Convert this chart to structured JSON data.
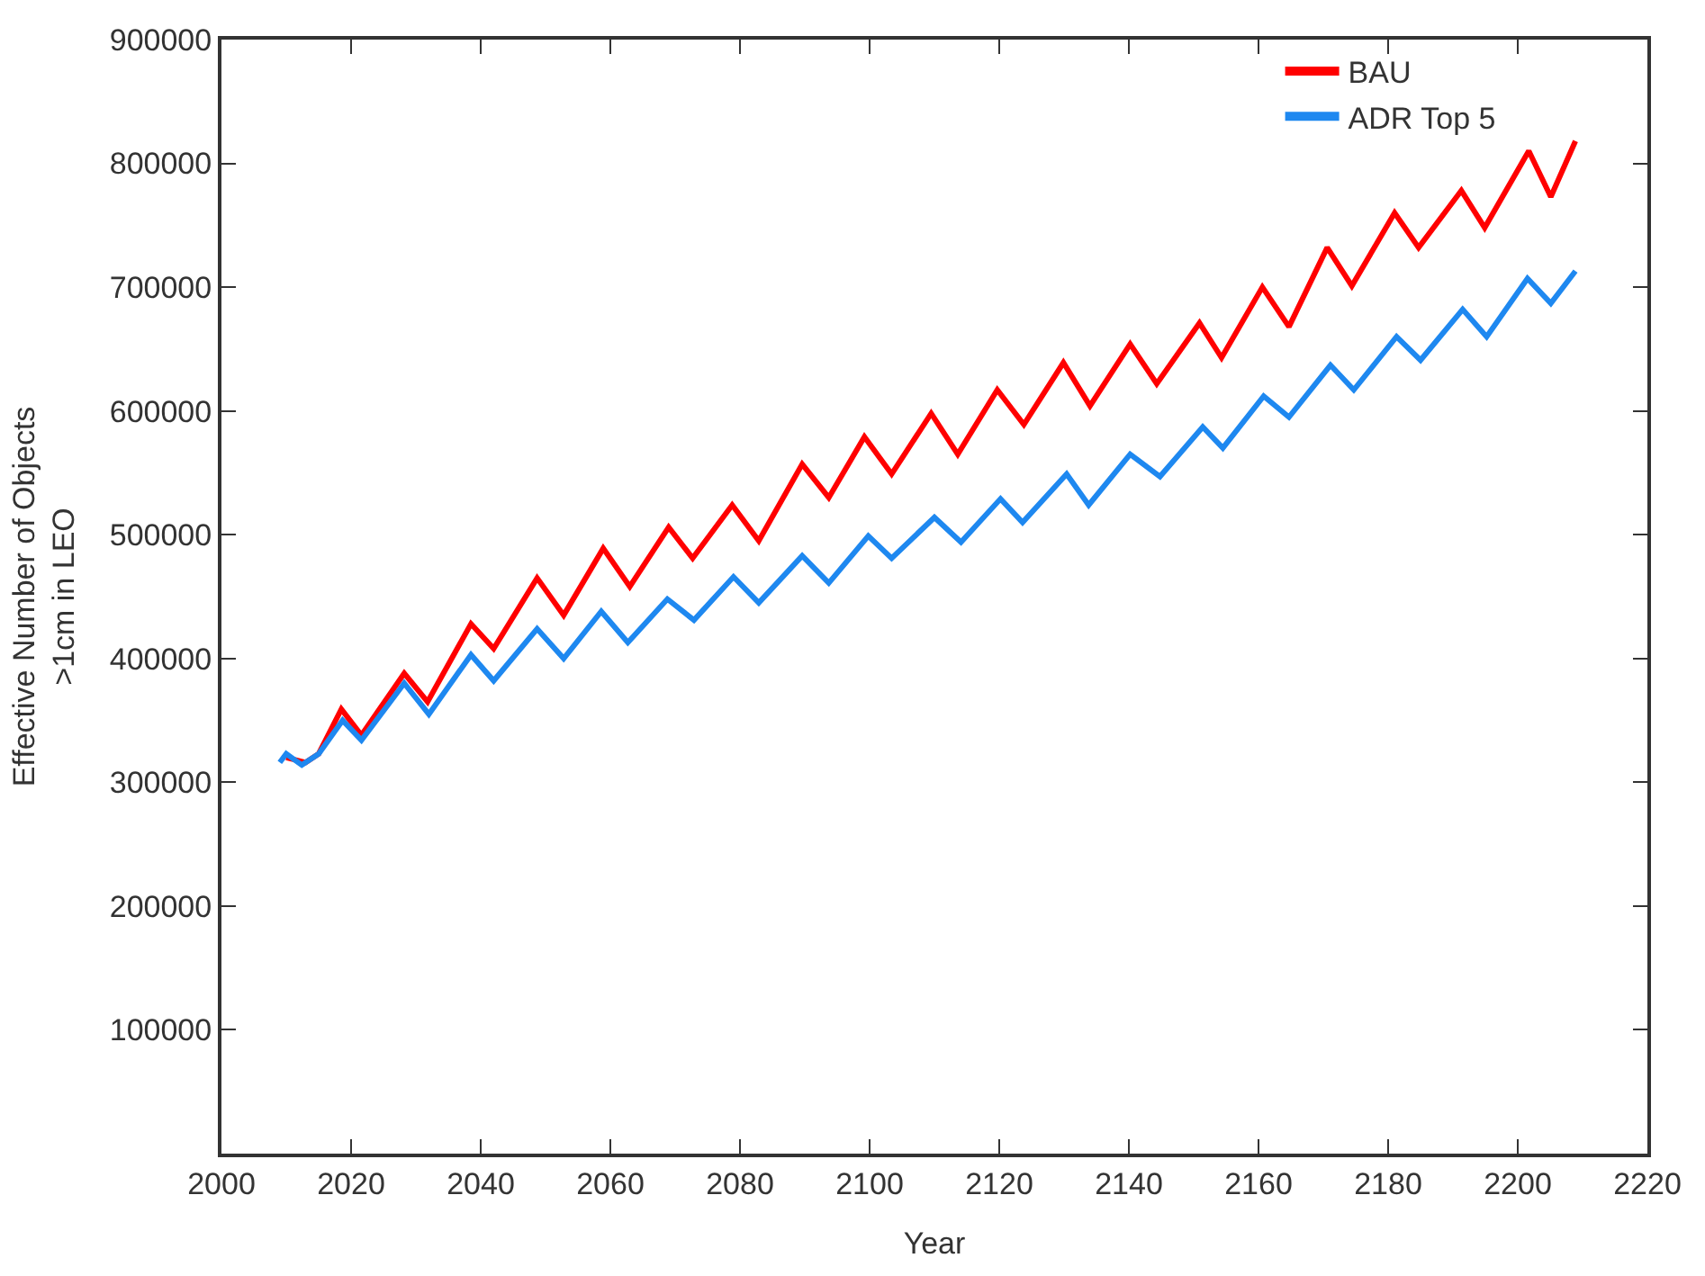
{
  "chart_data": {
    "type": "line",
    "xlabel": "Year",
    "ylabel": "Effective Number of Objects\n>1cm in LEO",
    "xlim": [
      2000,
      2220
    ],
    "xticks": [
      2000,
      2020,
      2040,
      2060,
      2080,
      2100,
      2120,
      2140,
      2160,
      2180,
      2200,
      2220
    ],
    "ylim": [
      0,
      900000
    ],
    "yticks": [
      100000,
      200000,
      300000,
      400000,
      500000,
      600000,
      700000,
      800000,
      900000
    ],
    "grid": false,
    "legend": "top right",
    "marker": "none",
    "line_style": "solid",
    "series": [
      {
        "name": "BAU",
        "color": "#ff0000",
        "x": [
          2010,
          2013,
          2015,
          2018.5,
          2021.6,
          2028.2,
          2031.8,
          2038.5,
          2042,
          2048.7,
          2052.8,
          2058.9,
          2063,
          2069,
          2072.7,
          2078.8,
          2082.9,
          2089.6,
          2093.7,
          2099.2,
          2103.4,
          2109.5,
          2113.6,
          2119.7,
          2123.8,
          2129.9,
          2134,
          2140.2,
          2144.3,
          2150.9,
          2154.3,
          2160.6,
          2164.7,
          2170.6,
          2174.4,
          2181,
          2184.7,
          2191.3,
          2194.9,
          2201.7,
          2205.1,
          2208.9
        ],
        "values": [
          320000,
          316000,
          323000,
          359000,
          338000,
          388000,
          365000,
          428000,
          408000,
          465000,
          435000,
          489000,
          458000,
          506000,
          481000,
          524000,
          495000,
          557000,
          530000,
          579000,
          549000,
          598000,
          565000,
          617000,
          589000,
          639000,
          604000,
          654000,
          622000,
          671000,
          643000,
          700000,
          668000,
          732000,
          701000,
          760000,
          732000,
          778000,
          748000,
          810000,
          773000,
          818000
        ]
      },
      {
        "name": "ADR Top 5",
        "color": "#1e88f0",
        "x": [
          2009,
          2010,
          2012.4,
          2015,
          2018.7,
          2021.6,
          2028.2,
          2032,
          2038.5,
          2042,
          2048.7,
          2052.8,
          2058.6,
          2062.7,
          2068.8,
          2072.9,
          2079,
          2082.9,
          2089.6,
          2093.7,
          2099.8,
          2103.4,
          2110,
          2114.1,
          2120.2,
          2123.6,
          2130.4,
          2133.8,
          2140.2,
          2144.8,
          2151.4,
          2154.5,
          2160.8,
          2164.7,
          2171.1,
          2174.7,
          2181.3,
          2185,
          2191.5,
          2195.2,
          2201.5,
          2205.1,
          2208.9
        ],
        "values": [
          316000,
          323000,
          314000,
          323000,
          350000,
          334000,
          380000,
          355000,
          403000,
          382000,
          424000,
          400000,
          438000,
          413000,
          448000,
          431000,
          466000,
          445000,
          483000,
          461000,
          499000,
          481000,
          514000,
          494000,
          529000,
          510000,
          549000,
          524000,
          565000,
          547000,
          587000,
          570000,
          612000,
          595000,
          637000,
          617000,
          660000,
          641000,
          682000,
          660000,
          707000,
          687000,
          713000
        ]
      }
    ]
  }
}
